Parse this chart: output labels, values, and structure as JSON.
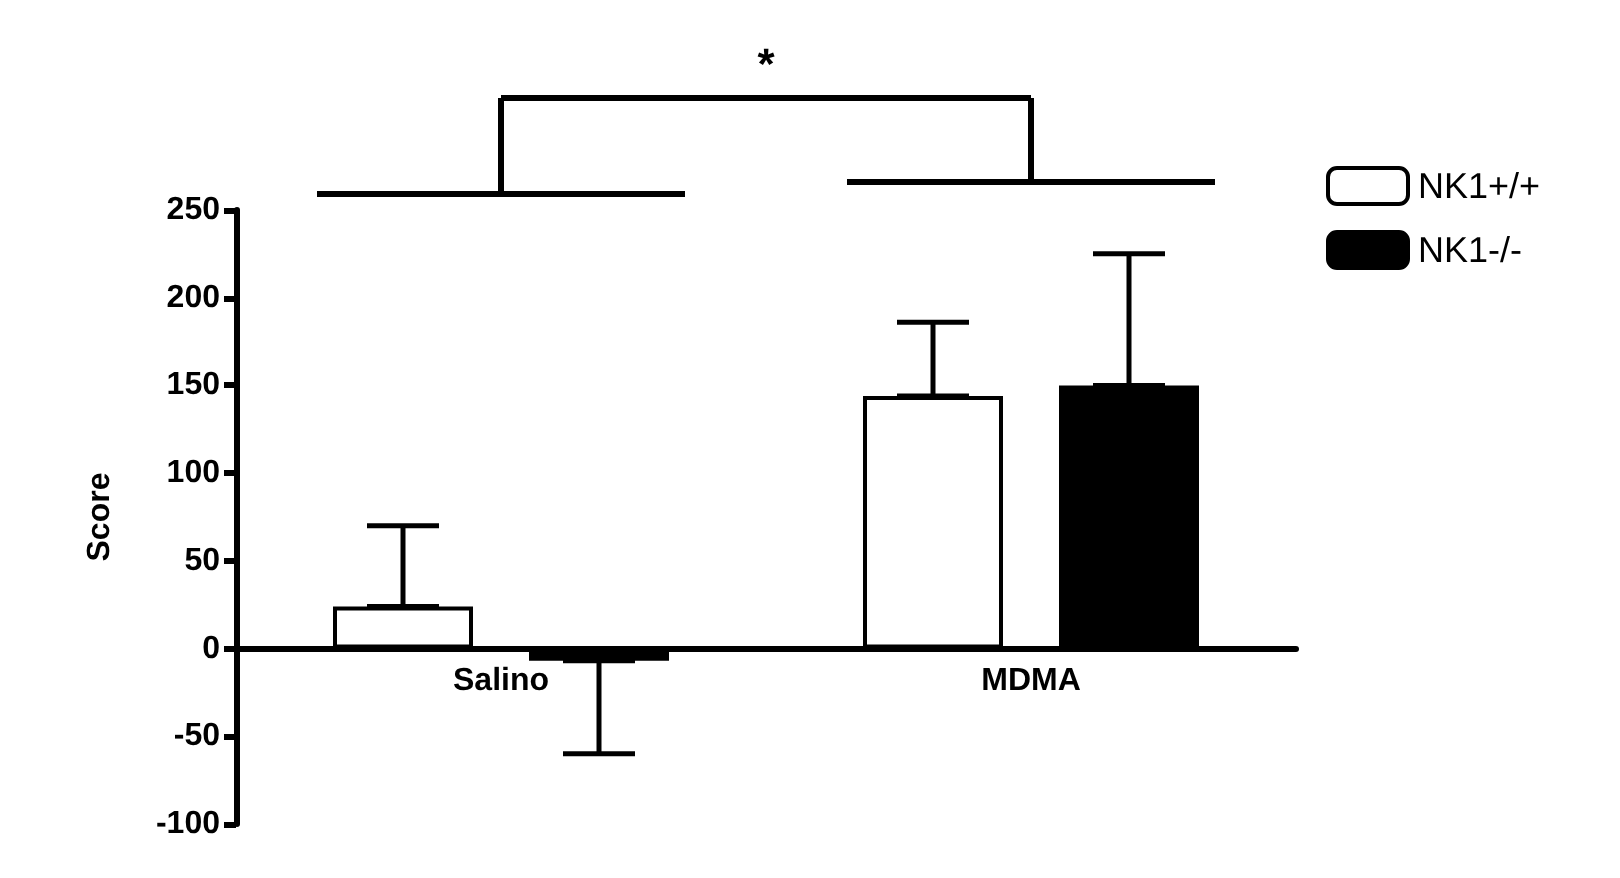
{
  "chart_data": {
    "type": "bar",
    "ylabel": "Score",
    "categories": [
      "Salino",
      "MDMA"
    ],
    "series": [
      {
        "name": "NK1+/+",
        "color": "#ffffff",
        "values": [
          24,
          144
        ],
        "errors": [
          [
            24,
            70
          ],
          [
            144,
            186
          ]
        ]
      },
      {
        "name": "NK1-/-",
        "color": "#000000",
        "values": [
          -7,
          150
        ],
        "errors": [
          [
            -60,
            -7
          ],
          [
            150,
            225
          ]
        ]
      }
    ],
    "ylim": [
      -100,
      250
    ],
    "yticks": [
      -100,
      -50,
      0,
      50,
      100,
      150,
      200,
      250
    ],
    "grid": false,
    "legend": "top right",
    "annotations": [
      "*"
    ]
  }
}
